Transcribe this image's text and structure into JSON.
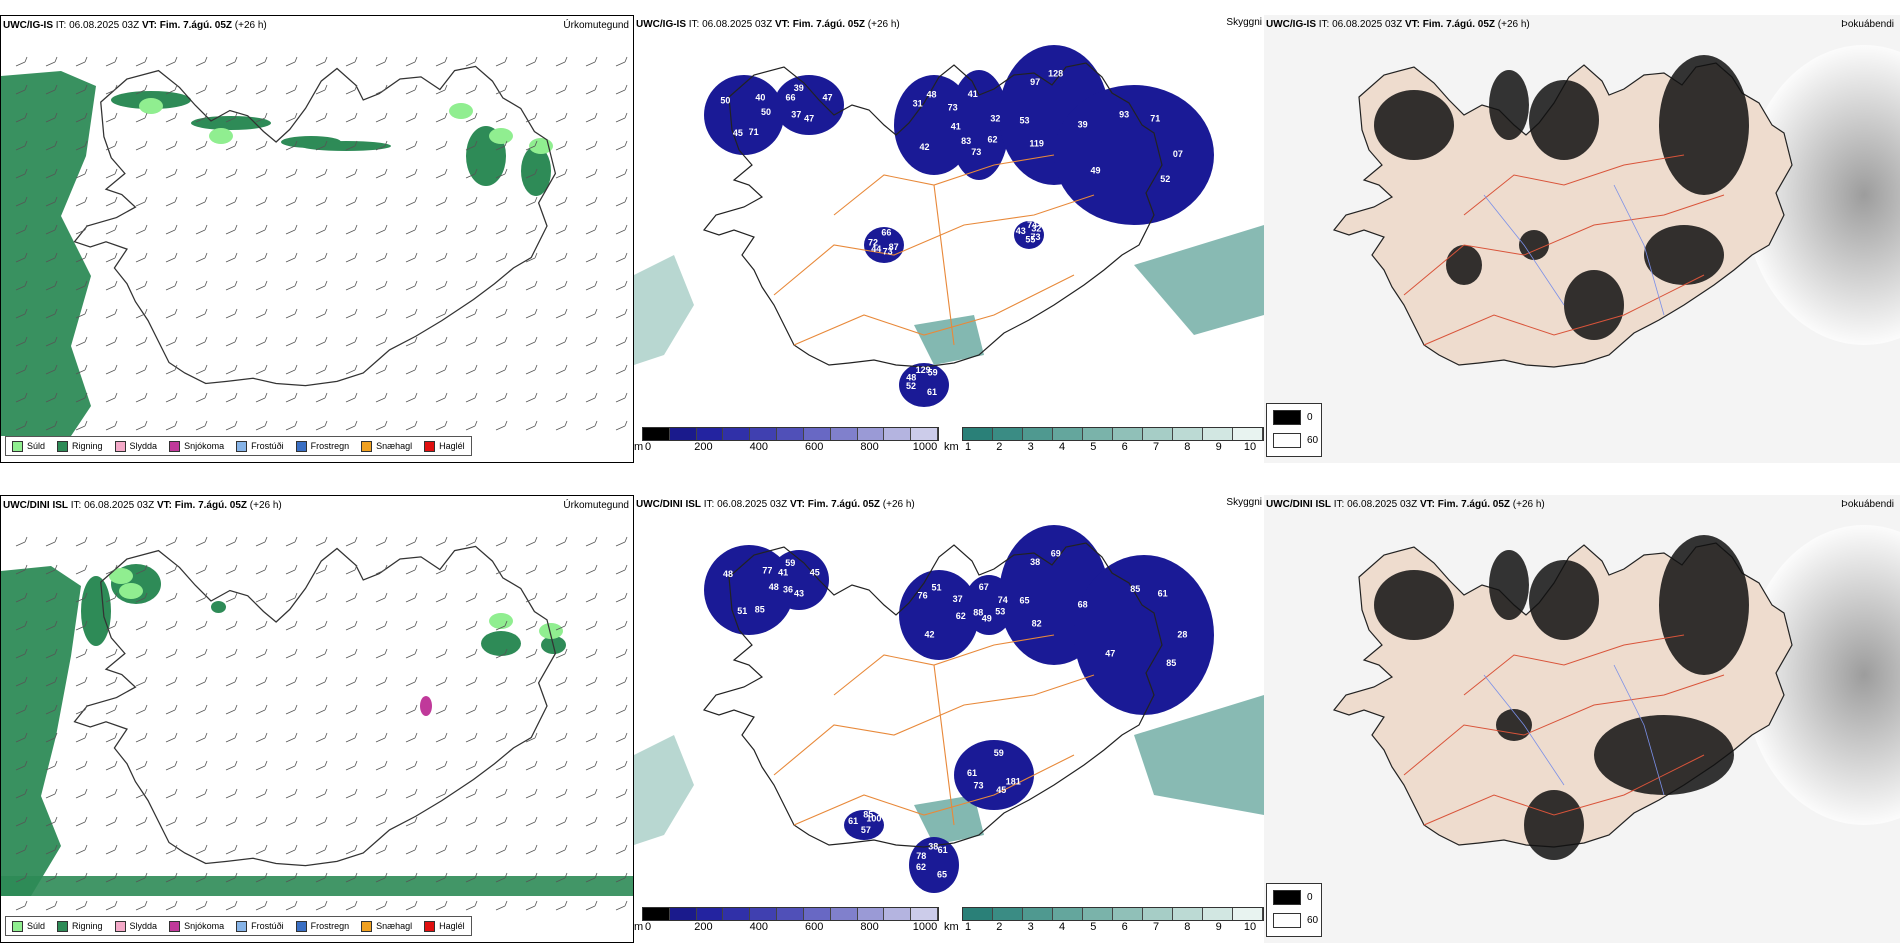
{
  "rows": [
    {
      "model": "UWC/IG-IS"
    },
    {
      "model": "UWC/DINI ISL"
    }
  ],
  "it_label": "IT:",
  "init_time": "06.08.2025 03Z",
  "vt_label": "VT:",
  "valid_time": "Fim. 7.ágú. 05Z",
  "lead": "(+26 h)",
  "titles": {
    "precip": "Úrkomutegund",
    "cloud": "Skyggni",
    "fog": "Þokuábendi"
  },
  "precip_legend": [
    {
      "label": "Súld",
      "color": "#90ee90"
    },
    {
      "label": "Rigning",
      "color": "#2e8b57"
    },
    {
      "label": "Slydda",
      "color": "#f4a9c8"
    },
    {
      "label": "Snjókoma",
      "color": "#c0399a"
    },
    {
      "label": "Frostúði",
      "color": "#87b4e8"
    },
    {
      "label": "Frostregn",
      "color": "#3a6fc4"
    },
    {
      "label": "Snæhagl",
      "color": "#f0a020"
    },
    {
      "label": "Haglél",
      "color": "#e01010"
    }
  ],
  "cloudbase_bar": {
    "unit": "m",
    "ticks": [
      "0",
      "200",
      "400",
      "600",
      "800",
      "1000"
    ],
    "colors": [
      "#000000",
      "#1a1a8c",
      "#2323a0",
      "#3030a8",
      "#4040b0",
      "#5050b8",
      "#6868c4",
      "#8080cc",
      "#9a9ad6",
      "#b4b4e0",
      "#ccccea"
    ]
  },
  "visibility_bar": {
    "unit": "km",
    "ticks": [
      "1",
      "2",
      "3",
      "4",
      "5",
      "6",
      "7",
      "8",
      "9",
      "10"
    ],
    "colors": [
      "#2a8078",
      "#3a8c84",
      "#4f9990",
      "#64a69d",
      "#7ab3aa",
      "#90c0b8",
      "#a6cdc6",
      "#bcdad4",
      "#d2e7e2",
      "#e8f3f0"
    ]
  },
  "fog_legend": [
    "0",
    "60"
  ],
  "cloud_labels": [
    [
      "50",
      "37",
      "48",
      "62",
      "53",
      "71",
      "73",
      "48",
      "32",
      "45",
      "39",
      "41",
      "83",
      "128",
      "52",
      "72",
      "59",
      "55",
      "50",
      "47",
      "42",
      "41",
      "39",
      "49",
      "66",
      "61",
      "43",
      "40",
      "47",
      "31",
      "32",
      "119",
      "93",
      "87",
      "52",
      "74",
      "71",
      "66",
      "73",
      "73",
      "97",
      "07",
      "44",
      "129",
      "73"
    ],
    [
      "48",
      "36",
      "51",
      "53",
      "65",
      "61",
      "45",
      "78",
      "100",
      "51",
      "59",
      "62",
      "88",
      "69",
      "85",
      "61",
      "61",
      "57",
      "48",
      "45",
      "42",
      "67",
      "68",
      "47",
      "59",
      "65",
      "61",
      "77",
      "43",
      "76",
      "74",
      "82",
      "85",
      "181",
      "62",
      "85",
      "85",
      "41",
      "37",
      "49",
      "38",
      "28",
      "73",
      "38"
    ]
  ]
}
